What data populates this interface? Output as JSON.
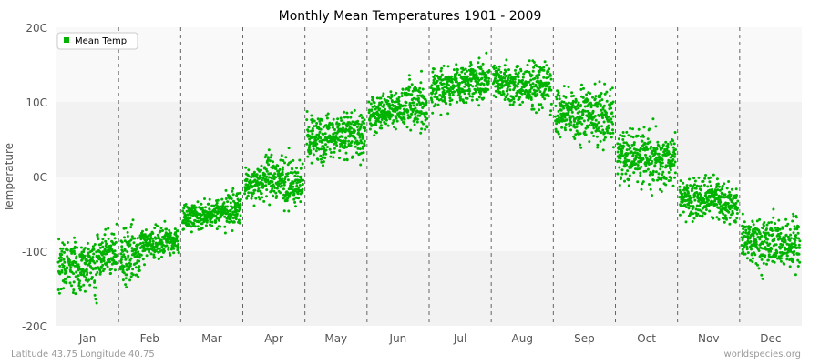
{
  "chart_data": {
    "type": "scatter",
    "title": "Monthly Mean Temperatures 1901 - 2009",
    "ylabel": "Temperature",
    "xlabel": "",
    "yticks": [
      "20C",
      "10C",
      "0C",
      "-10C",
      "-20C"
    ],
    "ylim": [
      -20,
      20
    ],
    "categories": [
      "Jan",
      "Feb",
      "Mar",
      "Apr",
      "May",
      "Jun",
      "Jul",
      "Aug",
      "Sep",
      "Oct",
      "Nov",
      "Dec"
    ],
    "series": [
      {
        "name": "Mean Temp",
        "color": "#00b300",
        "years": "1901-2009",
        "month_ranges": [
          [
            -12,
            -5.5
          ],
          [
            -12,
            -5.5
          ],
          [
            -10.5,
            -5
          ],
          [
            -10.5,
            -5.5
          ],
          [
            -9,
            -3.5
          ],
          [
            -8.5,
            -3
          ],
          [
            -5.5,
            2.5
          ],
          [
            -5,
            2.5
          ],
          [
            -4.5,
            3.5
          ],
          [
            -1,
            3
          ],
          [
            0,
            4.5
          ],
          [
            -1,
            5
          ],
          [
            5,
            5
          ],
          [
            5.5,
            4
          ],
          [
            5.5,
            5
          ],
          [
            8.5,
            3.5
          ],
          [
            9,
            4
          ],
          [
            9.5,
            5
          ],
          [
            12,
            4
          ],
          [
            12.5,
            3.5
          ],
          [
            13,
            4.5
          ],
          [
            12.5,
            4
          ],
          [
            12,
            4
          ],
          [
            12.5,
            5.5
          ],
          [
            8.5,
            5
          ],
          [
            8,
            5
          ],
          [
            8,
            6
          ],
          [
            3,
            6
          ],
          [
            2.5,
            6
          ],
          [
            2.5,
            5.5
          ],
          [
            -3,
            4
          ],
          [
            -3,
            4.5
          ],
          [
            -3.5,
            4
          ],
          [
            -8.5,
            5
          ],
          [
            -9,
            5
          ],
          [
            -9,
            5.5
          ]
        ]
      }
    ],
    "legend": "top-left",
    "grid": true
  },
  "footer": {
    "left": "Latitude 43.75 Longitude 40.75",
    "right": "worldspecies.org"
  }
}
